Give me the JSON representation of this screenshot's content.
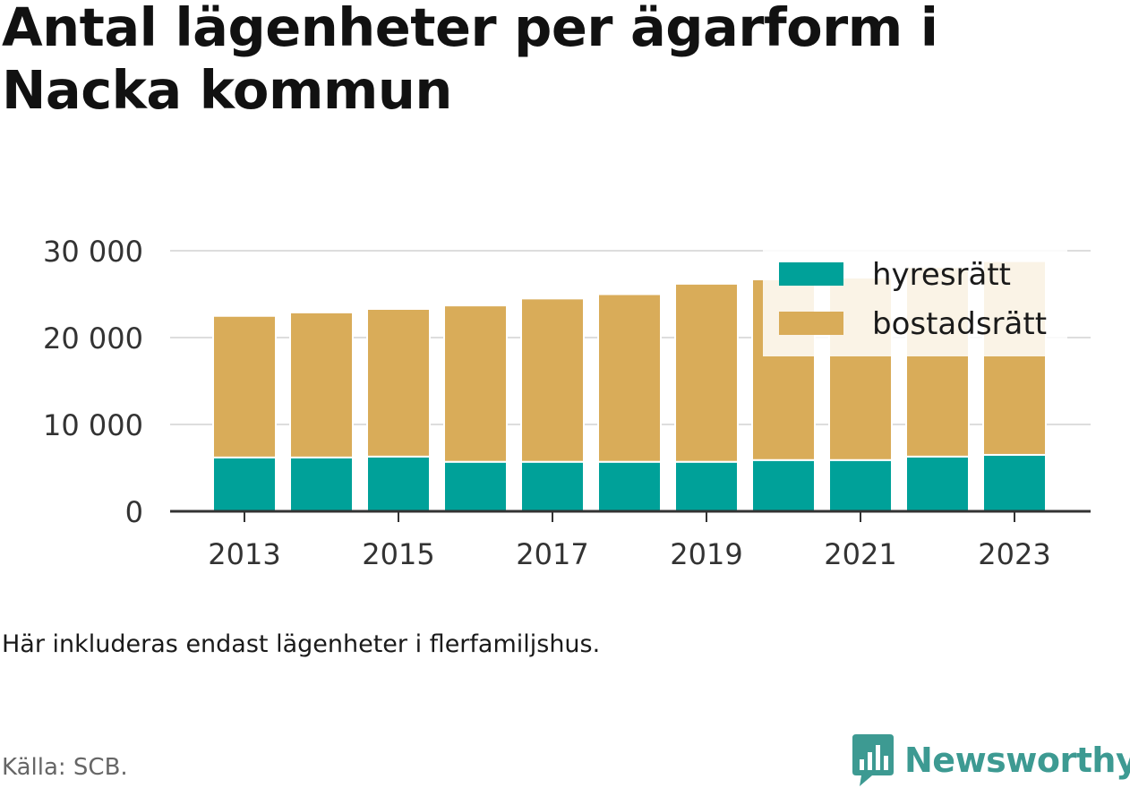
{
  "title": "Antal lägenheter per ägarform i Nacka kommun",
  "note": "Här inkluderas endast lägenheter i flerfamiljshus.",
  "source": "Källa: SCB.",
  "brand": "Newsworthy",
  "colors": {
    "hyresratt": "#00a199",
    "bostadsratt": "#d9ac59",
    "brand": "#3d9a92",
    "grid": "#dddddd",
    "axis": "#333333"
  },
  "chart_data": {
    "type": "bar",
    "stacked": true,
    "categories": [
      "2013",
      "2014",
      "2015",
      "2016",
      "2017",
      "2018",
      "2019",
      "2020",
      "2021",
      "2022",
      "2023"
    ],
    "x_tick_labels": [
      "2013",
      "2015",
      "2017",
      "2019",
      "2021",
      "2023"
    ],
    "y_ticks": [
      0,
      10000,
      20000,
      30000
    ],
    "y_tick_labels": [
      "0",
      "10 000",
      "20 000",
      "30 000"
    ],
    "ylim": [
      0,
      30000
    ],
    "grid": true,
    "legend_position": "top-right",
    "series": [
      {
        "name": "hyresrätt",
        "color": "#00a199",
        "values": [
          6200,
          6200,
          6300,
          5700,
          5700,
          5700,
          5700,
          5900,
          5900,
          6300,
          6500
        ]
      },
      {
        "name": "bostadsrätt",
        "color": "#d9ac59",
        "values": [
          16300,
          16700,
          17000,
          18000,
          18800,
          19300,
          20500,
          20800,
          21000,
          21800,
          22300
        ]
      }
    ]
  }
}
